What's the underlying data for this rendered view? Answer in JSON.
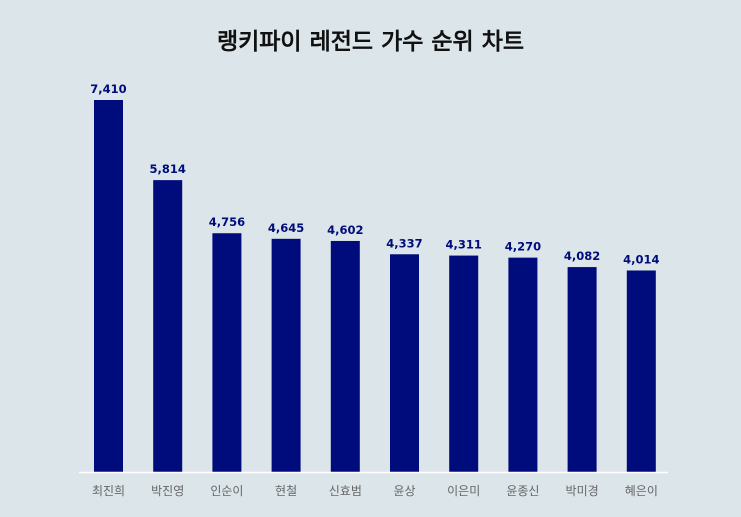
{
  "chart_data": {
    "type": "bar",
    "title": "랭키파이 레전드 가수 순위 차트",
    "categories": [
      "최진희",
      "박진영",
      "인순이",
      "현철",
      "신효범",
      "윤상",
      "이은미",
      "윤종신",
      "박미경",
      "혜은이"
    ],
    "values": [
      7410,
      5814,
      4756,
      4645,
      4602,
      4337,
      4311,
      4270,
      4082,
      4014
    ],
    "value_labels": [
      "7,410",
      "5,814",
      "4,756",
      "4,645",
      "4,602",
      "4,337",
      "4,311",
      "4,270",
      "4,082",
      "4,014"
    ],
    "ylim": [
      0,
      7410
    ],
    "grid": false,
    "colors": {
      "bar": "#000c7b",
      "value_label": "#000c7b",
      "category_label": "#666666",
      "axis": "#ffffff",
      "background": "#dbe5ea"
    }
  }
}
